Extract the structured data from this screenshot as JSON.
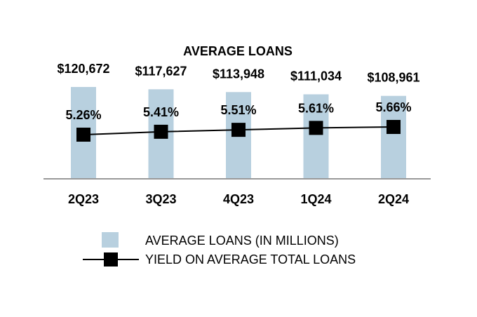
{
  "chart_data": {
    "type": "bar",
    "title": "AVERAGE LOANS",
    "categories": [
      "2Q23",
      "3Q23",
      "4Q23",
      "1Q24",
      "2Q24"
    ],
    "series": [
      {
        "name": "AVERAGE LOANS (IN MILLIONS)",
        "type": "bar",
        "values": [
          120672,
          117627,
          113948,
          111034,
          108961
        ],
        "labels": [
          "$120,672",
          "$117,627",
          "$113,948",
          "$111,034",
          "$108,961"
        ],
        "color": "#b8d0df"
      },
      {
        "name": "YIELD ON AVERAGE TOTAL LOANS",
        "type": "line",
        "values": [
          5.26,
          5.41,
          5.51,
          5.61,
          5.66
        ],
        "labels": [
          "5.26%",
          "5.41%",
          "5.51%",
          "5.61%",
          "5.66%"
        ],
        "color": "#000000"
      }
    ],
    "grid": false,
    "legend_placement": "bottom"
  }
}
